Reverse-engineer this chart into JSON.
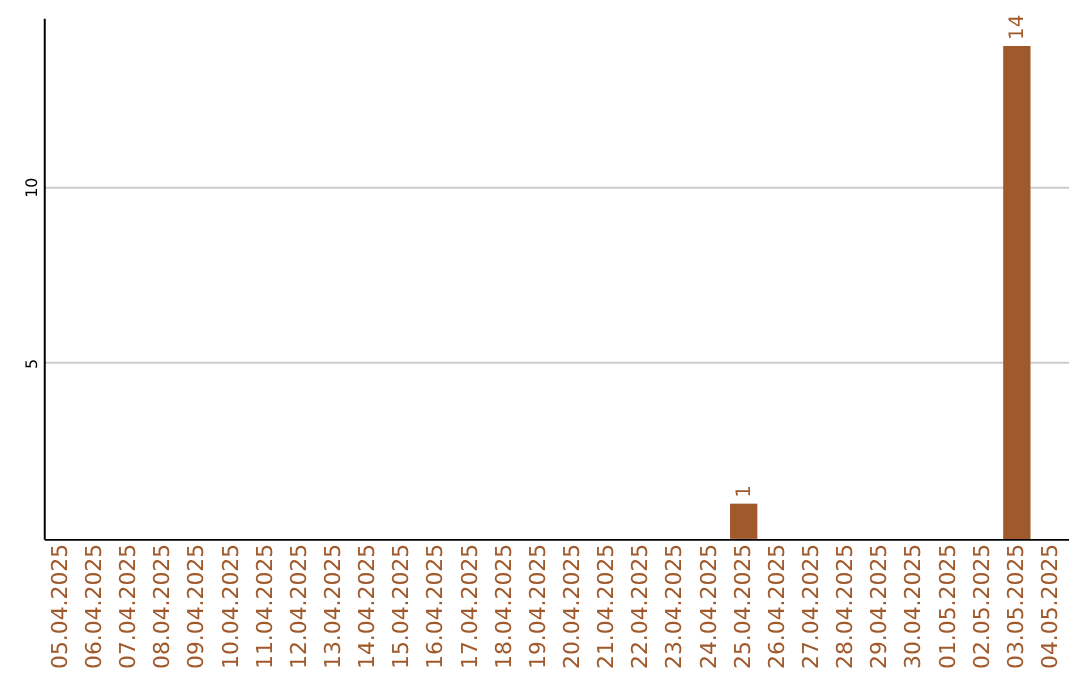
{
  "chart_data": {
    "type": "bar",
    "categories": [
      "05.04.2025",
      "06.04.2025",
      "07.04.2025",
      "08.04.2025",
      "09.04.2025",
      "10.04.2025",
      "11.04.2025",
      "12.04.2025",
      "13.04.2025",
      "14.04.2025",
      "15.04.2025",
      "16.04.2025",
      "17.04.2025",
      "18.04.2025",
      "19.04.2025",
      "20.04.2025",
      "21.04.2025",
      "22.04.2025",
      "23.04.2025",
      "24.04.2025",
      "25.04.2025",
      "26.04.2025",
      "27.04.2025",
      "28.04.2025",
      "29.04.2025",
      "30.04.2025",
      "01.05.2025",
      "02.05.2025",
      "03.05.2025",
      "04.05.2025"
    ],
    "values": [
      0,
      0,
      0,
      0,
      0,
      0,
      0,
      0,
      0,
      0,
      0,
      0,
      0,
      0,
      0,
      0,
      0,
      0,
      0,
      0,
      1,
      0,
      0,
      0,
      0,
      0,
      0,
      0,
      14,
      0
    ],
    "value_labels": [
      null,
      null,
      null,
      null,
      null,
      null,
      null,
      null,
      null,
      null,
      null,
      null,
      null,
      null,
      null,
      null,
      null,
      null,
      null,
      null,
      "1",
      null,
      null,
      null,
      null,
      null,
      null,
      null,
      "14",
      null
    ],
    "color": "#a0592a",
    "ylim": [
      0,
      14.8
    ],
    "yticks": [
      5,
      10
    ],
    "grid": "y"
  }
}
